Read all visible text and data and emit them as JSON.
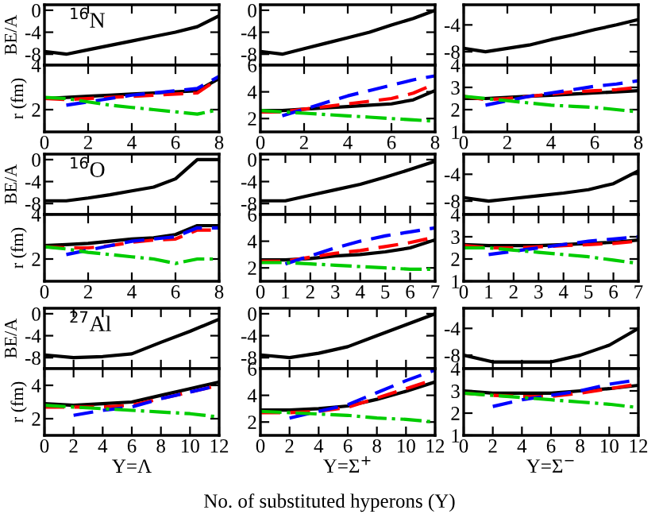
{
  "chart_data": [
    {
      "type": "line",
      "x": [
        0,
        1,
        2,
        3,
        4,
        5,
        6,
        7,
        8
      ],
      "xlim": [
        0,
        8
      ],
      "xticks": [
        0,
        2,
        4,
        6,
        8
      ],
      "ylim": [
        -10,
        1
      ],
      "yticks": [
        -8,
        -4,
        0
      ],
      "tick_labels": "y",
      "ylabel": "BE/A",
      "annotations": [
        "$^{16}$N"
      ],
      "series": [
        {
          "color": "#000000",
          "line_style": "solid",
          "values": [
            -7.5,
            -8,
            -7.2,
            -6.4,
            -5.6,
            -4.8,
            -4,
            -3,
            -1
          ]
        }
      ]
    },
    {
      "type": "line",
      "x": [
        0,
        1,
        2,
        3,
        4,
        5,
        6,
        7,
        8
      ],
      "xlim": [
        0,
        8
      ],
      "xticks": [
        0,
        2,
        4,
        6,
        8
      ],
      "ylim": [
        -10,
        1
      ],
      "yticks": [
        -8,
        -4,
        0
      ],
      "tick_labels": "y",
      "series": [
        {
          "color": "#000000",
          "line_style": "solid",
          "values": [
            -7.5,
            -8,
            -7,
            -6,
            -5,
            -4,
            -2.7,
            -1.5,
            0
          ]
        }
      ]
    },
    {
      "type": "line",
      "x": [
        0,
        1,
        2,
        3,
        4,
        5,
        6,
        7,
        8
      ],
      "xlim": [
        0,
        8
      ],
      "xticks": [
        0,
        2,
        4,
        6,
        8
      ],
      "ylim": [
        -10,
        -1
      ],
      "yticks": [
        -8,
        -4
      ],
      "tick_labels": "y",
      "series": [
        {
          "color": "#000000",
          "line_style": "solid",
          "values": [
            -7.5,
            -8,
            -7.5,
            -7,
            -6.2,
            -5.5,
            -4.7,
            -4,
            -3.2
          ]
        }
      ]
    },
    {
      "type": "line",
      "x": [
        0,
        1,
        2,
        3,
        4,
        5,
        6,
        7,
        8
      ],
      "xlim": [
        0,
        8
      ],
      "xticks": [
        0,
        2,
        4,
        6,
        8
      ],
      "ylim": [
        1,
        4
      ],
      "yticks": [
        2,
        4
      ],
      "ylabel": "r (fm)",
      "series": [
        {
          "color": "#000000",
          "line_style": "solid",
          "values": [
            2.5,
            2.55,
            2.6,
            2.65,
            2.7,
            2.75,
            2.8,
            2.85,
            3.4
          ]
        },
        {
          "color": "#ff0000",
          "line_style": "dashed",
          "values": [
            2.5,
            2.45,
            2.5,
            2.55,
            2.6,
            2.65,
            2.7,
            2.75,
            3.4
          ]
        },
        {
          "color": "#0000ff",
          "line_style": "dashed",
          "values": [
            null,
            2.2,
            2.35,
            2.5,
            2.65,
            2.75,
            2.85,
            2.95,
            3.5
          ]
        },
        {
          "color": "#00cc00",
          "line_style": "dashdot",
          "values": [
            2.55,
            2.5,
            2.35,
            2.2,
            2.1,
            2.0,
            1.9,
            1.8,
            2.0
          ]
        }
      ]
    },
    {
      "type": "line",
      "x": [
        0,
        1,
        2,
        3,
        4,
        5,
        6,
        7,
        8
      ],
      "xlim": [
        0,
        8
      ],
      "xticks": [
        0,
        2,
        4,
        6,
        8
      ],
      "ylim": [
        1,
        6
      ],
      "yticks": [
        2,
        4,
        6
      ],
      "series": [
        {
          "color": "#000000",
          "line_style": "solid",
          "values": [
            2.6,
            2.6,
            2.7,
            2.8,
            2.9,
            3.0,
            3.1,
            3.4,
            4.1
          ]
        },
        {
          "color": "#ff0000",
          "line_style": "dashed",
          "values": [
            2.5,
            2.5,
            2.7,
            2.9,
            3.1,
            3.3,
            3.5,
            3.9,
            4.6
          ]
        },
        {
          "color": "#0000ff",
          "line_style": "dashed",
          "values": [
            null,
            2.2,
            2.7,
            3.2,
            3.7,
            4.1,
            4.5,
            4.9,
            5.2
          ]
        },
        {
          "color": "#00cc00",
          "line_style": "dashdot",
          "values": [
            2.6,
            2.5,
            2.4,
            2.3,
            2.2,
            2.1,
            2.0,
            1.9,
            1.8
          ]
        }
      ]
    },
    {
      "type": "line",
      "x": [
        0,
        1,
        2,
        3,
        4,
        5,
        6,
        7,
        8
      ],
      "xlim": [
        0,
        8
      ],
      "xticks": [
        0,
        2,
        4,
        6,
        8
      ],
      "ylim": [
        1,
        4
      ],
      "yticks": [
        1,
        2,
        3,
        4
      ],
      "series": [
        {
          "color": "#000000",
          "line_style": "solid",
          "values": [
            2.5,
            2.5,
            2.55,
            2.6,
            2.65,
            2.7,
            2.75,
            2.8,
            2.85
          ]
        },
        {
          "color": "#ff0000",
          "line_style": "dashed",
          "values": [
            2.6,
            2.45,
            2.5,
            2.6,
            2.7,
            2.8,
            2.85,
            2.9,
            3.0
          ]
        },
        {
          "color": "#0000ff",
          "line_style": "dashed",
          "values": [
            null,
            2.2,
            2.4,
            2.6,
            2.75,
            2.9,
            3.05,
            3.15,
            3.3
          ]
        },
        {
          "color": "#00cc00",
          "line_style": "dashdot",
          "values": [
            2.6,
            2.5,
            2.4,
            2.3,
            2.2,
            2.15,
            2.1,
            2.0,
            1.9
          ]
        }
      ]
    },
    {
      "type": "line",
      "x": [
        0,
        1,
        2,
        3,
        4,
        5,
        6,
        7,
        8
      ],
      "xlim": [
        0,
        8
      ],
      "xticks": [
        0,
        2,
        4,
        6,
        8
      ],
      "ylim": [
        -10,
        1
      ],
      "yticks": [
        -8,
        -4,
        0
      ],
      "tick_labels": "y",
      "ylabel": "BE/A",
      "annotations": [
        "$^{16}$O"
      ],
      "series": [
        {
          "color": "#000000",
          "line_style": "solid",
          "values": [
            -7.5,
            -7.5,
            -7,
            -6.4,
            -5.7,
            -5,
            -3.5,
            0,
            0
          ]
        }
      ]
    },
    {
      "type": "line",
      "x": [
        0,
        1,
        2,
        3,
        4,
        5,
        6,
        7
      ],
      "xlim": [
        0,
        7
      ],
      "xticks": [
        0,
        1,
        2,
        3,
        4,
        5,
        6,
        7
      ],
      "ylim": [
        -10,
        1
      ],
      "yticks": [
        -8,
        -4,
        0
      ],
      "tick_labels": "y",
      "series": [
        {
          "color": "#000000",
          "line_style": "solid",
          "values": [
            -7.5,
            -7.5,
            -6.5,
            -5.5,
            -4.5,
            -3.2,
            -1.8,
            -0.3
          ]
        }
      ]
    },
    {
      "type": "line",
      "x": [
        0,
        1,
        2,
        3,
        4,
        5,
        6,
        7
      ],
      "xlim": [
        0,
        7
      ],
      "xticks": [
        0,
        1,
        2,
        3,
        4,
        5,
        6,
        7
      ],
      "ylim": [
        -10,
        -1
      ],
      "yticks": [
        -8,
        -4
      ],
      "tick_labels": "y",
      "series": [
        {
          "color": "#000000",
          "line_style": "solid",
          "values": [
            -7.5,
            -8,
            -7.6,
            -7.2,
            -6.8,
            -6.3,
            -5.4,
            -3.5
          ]
        }
      ]
    },
    {
      "type": "line",
      "x": [
        0,
        1,
        2,
        3,
        4,
        5,
        6,
        7,
        8
      ],
      "xlim": [
        0,
        8
      ],
      "xticks": [
        0,
        2,
        4,
        6,
        8
      ],
      "ylim": [
        1,
        4
      ],
      "yticks": [
        2,
        4
      ],
      "ylabel": "r (fm)",
      "series": [
        {
          "color": "#000000",
          "line_style": "solid",
          "values": [
            2.6,
            2.65,
            2.7,
            2.8,
            2.9,
            2.95,
            3.1,
            3.5,
            3.5
          ]
        },
        {
          "color": "#ff0000",
          "line_style": "dashed",
          "values": [
            2.55,
            2.5,
            2.5,
            2.6,
            2.75,
            2.85,
            2.9,
            3.3,
            3.3
          ]
        },
        {
          "color": "#0000ff",
          "line_style": "dashed",
          "values": [
            null,
            2.2,
            2.4,
            2.6,
            2.8,
            2.9,
            3.0,
            3.4,
            3.4
          ]
        },
        {
          "color": "#00cc00",
          "line_style": "dashdot",
          "values": [
            2.55,
            2.45,
            2.3,
            2.2,
            2.1,
            2.0,
            1.8,
            2.0,
            2.0
          ]
        }
      ]
    },
    {
      "type": "line",
      "x": [
        0,
        1,
        2,
        3,
        4,
        5,
        6,
        7
      ],
      "xlim": [
        0,
        7
      ],
      "xticks": [
        0,
        1,
        2,
        3,
        4,
        5,
        6,
        7
      ],
      "ylim": [
        1,
        6
      ],
      "yticks": [
        2,
        4,
        6
      ],
      "series": [
        {
          "color": "#000000",
          "line_style": "solid",
          "values": [
            2.6,
            2.6,
            2.7,
            2.9,
            3.0,
            3.2,
            3.5,
            4.1
          ]
        },
        {
          "color": "#ff0000",
          "line_style": "dashed",
          "values": [
            2.5,
            2.5,
            2.8,
            3.1,
            3.3,
            3.6,
            3.9,
            4.3
          ]
        },
        {
          "color": "#0000ff",
          "line_style": "dashed",
          "values": [
            null,
            2.3,
            2.9,
            3.5,
            4.0,
            4.4,
            4.7,
            5.0
          ]
        },
        {
          "color": "#00cc00",
          "line_style": "dashdot",
          "values": [
            2.4,
            2.4,
            2.3,
            2.2,
            2.1,
            2.0,
            1.9,
            1.9
          ]
        }
      ]
    },
    {
      "type": "line",
      "x": [
        0,
        1,
        2,
        3,
        4,
        5,
        6,
        7
      ],
      "xlim": [
        0,
        7
      ],
      "xticks": [
        0,
        1,
        2,
        3,
        4,
        5,
        6,
        7
      ],
      "ylim": [
        1,
        4
      ],
      "yticks": [
        1,
        2,
        3,
        4
      ],
      "series": [
        {
          "color": "#000000",
          "line_style": "solid",
          "values": [
            2.65,
            2.6,
            2.6,
            2.6,
            2.65,
            2.7,
            2.75,
            2.85
          ]
        },
        {
          "color": "#ff0000",
          "line_style": "dashed",
          "values": [
            2.6,
            2.5,
            2.5,
            2.55,
            2.6,
            2.65,
            2.7,
            2.8
          ]
        },
        {
          "color": "#0000ff",
          "line_style": "dashed",
          "values": [
            null,
            2.2,
            2.35,
            2.5,
            2.65,
            2.8,
            2.9,
            3.0
          ]
        },
        {
          "color": "#00cc00",
          "line_style": "dashdot",
          "values": [
            2.5,
            2.5,
            2.4,
            2.3,
            2.2,
            2.1,
            1.95,
            1.8
          ]
        }
      ]
    },
    {
      "type": "line",
      "x": [
        0,
        2,
        4,
        6,
        8,
        10,
        12
      ],
      "xlim": [
        0,
        12
      ],
      "xticks": [
        0,
        2,
        4,
        6,
        8,
        10,
        12
      ],
      "ylim": [
        -10,
        1
      ],
      "yticks": [
        -8,
        -4,
        0
      ],
      "tick_labels": "y",
      "ylabel": "BE/A",
      "annotations": [
        "$^{27}$Al"
      ],
      "series": [
        {
          "color": "#000000",
          "line_style": "solid",
          "values": [
            -7.5,
            -8,
            -7.8,
            -7.3,
            -5.2,
            -3.2,
            -1
          ]
        }
      ]
    },
    {
      "type": "line",
      "x": [
        0,
        2,
        4,
        6,
        8,
        10,
        12
      ],
      "xlim": [
        0,
        12
      ],
      "xticks": [
        0,
        2,
        4,
        6,
        8,
        10,
        12
      ],
      "ylim": [
        -10,
        1
      ],
      "yticks": [
        -8,
        -4,
        0
      ],
      "tick_labels": "y",
      "series": [
        {
          "color": "#000000",
          "line_style": "solid",
          "values": [
            -7.5,
            -8,
            -7.2,
            -6,
            -4,
            -2,
            0
          ]
        }
      ]
    },
    {
      "type": "line",
      "x": [
        0,
        2,
        4,
        6,
        8,
        10,
        12
      ],
      "xlim": [
        0,
        12
      ],
      "xticks": [
        0,
        2,
        4,
        6,
        8,
        10,
        12
      ],
      "ylim": [
        -10,
        -1
      ],
      "yticks": [
        -8,
        -4
      ],
      "tick_labels": "y",
      "series": [
        {
          "color": "#000000",
          "line_style": "solid",
          "values": [
            -8,
            -9,
            -9,
            -9,
            -8,
            -6.5,
            -4
          ]
        }
      ]
    },
    {
      "type": "line",
      "x": [
        0,
        2,
        4,
        6,
        8,
        10,
        12
      ],
      "xlim": [
        0,
        12
      ],
      "xticks": [
        0,
        2,
        4,
        6,
        8,
        10,
        12
      ],
      "ylim": [
        1,
        5
      ],
      "yticks": [
        2,
        4
      ],
      "ylabel": "r (fm)",
      "xlabel": "Y=Λ",
      "series": [
        {
          "color": "#000000",
          "line_style": "solid",
          "values": [
            2.9,
            2.8,
            2.9,
            3.0,
            3.4,
            3.8,
            4.2
          ]
        },
        {
          "color": "#ff0000",
          "line_style": "dashed",
          "values": [
            2.7,
            2.7,
            2.7,
            2.8,
            3.2,
            3.6,
            4.0
          ]
        },
        {
          "color": "#0000ff",
          "line_style": "dashed",
          "values": [
            null,
            2.2,
            2.5,
            2.7,
            3.2,
            3.6,
            4.0
          ]
        },
        {
          "color": "#00cc00",
          "line_style": "dashdot",
          "values": [
            2.8,
            2.7,
            2.6,
            2.5,
            2.4,
            2.3,
            2.1
          ]
        }
      ]
    },
    {
      "type": "line",
      "x": [
        0,
        2,
        4,
        6,
        8,
        10,
        12
      ],
      "xlim": [
        0,
        12
      ],
      "xticks": [
        0,
        2,
        4,
        6,
        8,
        10,
        12
      ],
      "ylim": [
        1,
        6
      ],
      "yticks": [
        2,
        4,
        6
      ],
      "xlabel": "Y=Σ$^{+}$",
      "annotations": [
        "No. of substituted hyperons (Y)"
      ],
      "series": [
        {
          "color": "#000000",
          "line_style": "solid",
          "values": [
            2.9,
            2.9,
            3.0,
            3.2,
            3.7,
            4.3,
            5.0
          ]
        },
        {
          "color": "#ff0000",
          "line_style": "dashed",
          "values": [
            2.7,
            2.7,
            2.8,
            3.1,
            3.8,
            4.5,
            5.2
          ]
        },
        {
          "color": "#0000ff",
          "line_style": "dashed",
          "values": [
            null,
            2.3,
            2.8,
            3.3,
            4.2,
            5.1,
            5.9
          ]
        },
        {
          "color": "#00cc00",
          "line_style": "dashdot",
          "values": [
            2.8,
            2.7,
            2.6,
            2.5,
            2.3,
            2.2,
            2.0
          ]
        }
      ]
    },
    {
      "type": "line",
      "x": [
        0,
        2,
        4,
        6,
        8,
        10,
        12
      ],
      "xlim": [
        0,
        12
      ],
      "xticks": [
        0,
        2,
        4,
        6,
        8,
        10,
        12
      ],
      "ylim": [
        1,
        4
      ],
      "yticks": [
        1,
        2,
        3,
        4
      ],
      "xlabel": "Y=Σ$^{−}$",
      "series": [
        {
          "color": "#000000",
          "line_style": "solid",
          "values": [
            3.0,
            2.9,
            2.9,
            2.9,
            3.0,
            3.1,
            3.25
          ]
        },
        {
          "color": "#ff0000",
          "line_style": "dashed",
          "values": [
            2.9,
            2.8,
            2.75,
            2.75,
            2.9,
            3.1,
            3.3
          ]
        },
        {
          "color": "#0000ff",
          "line_style": "dashed",
          "values": [
            null,
            2.3,
            2.6,
            2.8,
            3.0,
            3.3,
            3.5
          ]
        },
        {
          "color": "#00cc00",
          "line_style": "dashdot",
          "values": [
            2.9,
            2.8,
            2.7,
            2.6,
            2.5,
            2.4,
            2.25
          ]
        }
      ]
    }
  ]
}
